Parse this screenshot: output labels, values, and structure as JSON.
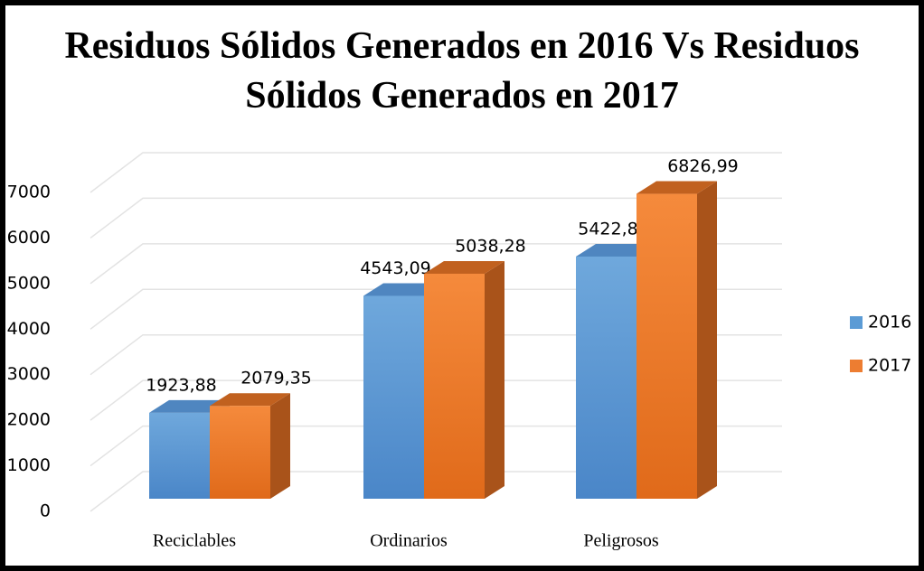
{
  "chart_data": {
    "type": "bar3d",
    "title": "Residuos Sólidos Generados en 2016 Vs Residuos Sólidos Generados en 2017",
    "categories": [
      "Reciclables",
      "Ordinarios",
      "Peligrosos"
    ],
    "series": [
      {
        "name": "2016",
        "color": "#5b9bd5",
        "values": [
          1923.88,
          4543.09,
          5422.8
        ],
        "value_labels": [
          "1923,88",
          "4543,09",
          "5422,8"
        ]
      },
      {
        "name": "2017",
        "color": "#ed7d31",
        "values": [
          2079.35,
          5038.28,
          6826.99
        ],
        "value_labels": [
          "2079,35",
          "5038,28",
          "6826,99"
        ]
      }
    ],
    "ylim": [
      0,
      7000
    ],
    "yticks": [
      0,
      1000,
      2000,
      3000,
      4000,
      5000,
      6000,
      7000
    ],
    "grid": true,
    "legend": "right"
  }
}
